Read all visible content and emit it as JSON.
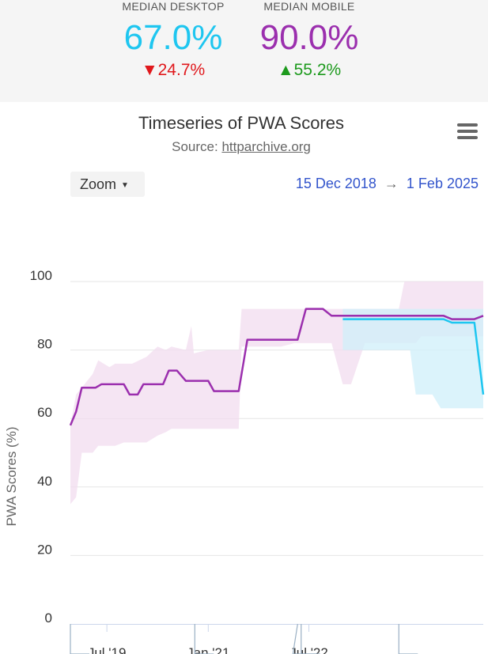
{
  "summary": {
    "desktop": {
      "label": "MEDIAN DESKTOP",
      "value": "67.0%",
      "arrow": "▼",
      "change": "24.7%",
      "color": "#1ec6f0"
    },
    "mobile": {
      "label": "MEDIAN MOBILE",
      "value": "90.0%",
      "arrow": "▲",
      "change": "55.2%",
      "color": "#9b2fae"
    }
  },
  "navigator": {
    "zoom_label": "Zoom",
    "range_start": "15 Dec 2018",
    "range_arrow": "→",
    "range_end": "1 Feb 2025"
  },
  "chart_data": {
    "type": "line",
    "title": "Timeseries of PWA Scores",
    "source_label": "Source:",
    "source_link": "httparchive.org",
    "ylabel": "PWA Scores (%)",
    "ylim": [
      0,
      100
    ],
    "yticks": [
      "0",
      "20",
      "40",
      "60",
      "80",
      "100"
    ],
    "xticks": [
      {
        "label": "Jul '19",
        "date": "2019-07-01"
      },
      {
        "label": "Jan '21",
        "date": "2021-01-01"
      },
      {
        "label": "Jul '22",
        "date": "2022-07-01"
      }
    ],
    "xlim": [
      "2018-12-15",
      "2025-02-01"
    ],
    "grid": true,
    "series": [
      {
        "name": "Mobile",
        "color": "#9b2fae",
        "band_color": "#f1dcef",
        "points": [
          [
            "2018-12-15",
            58
          ],
          [
            "2019-01-15",
            62
          ],
          [
            "2019-02-15",
            69
          ],
          [
            "2019-03-15",
            69
          ],
          [
            "2019-05-01",
            69
          ],
          [
            "2019-06-01",
            70
          ],
          [
            "2019-08-01",
            70
          ],
          [
            "2019-10-01",
            70
          ],
          [
            "2019-11-01",
            67
          ],
          [
            "2019-12-15",
            67
          ],
          [
            "2020-01-15",
            70
          ],
          [
            "2020-03-01",
            70
          ],
          [
            "2020-05-01",
            70
          ],
          [
            "2020-06-01",
            74
          ],
          [
            "2020-07-15",
            74
          ],
          [
            "2020-09-01",
            71
          ],
          [
            "2020-11-01",
            71
          ],
          [
            "2021-01-01",
            71
          ],
          [
            "2021-02-01",
            68
          ],
          [
            "2021-05-01",
            68
          ],
          [
            "2021-06-15",
            68
          ],
          [
            "2021-08-01",
            83
          ],
          [
            "2022-01-01",
            83
          ],
          [
            "2022-05-01",
            83
          ],
          [
            "2022-06-15",
            92
          ],
          [
            "2022-09-15",
            92
          ],
          [
            "2022-11-01",
            90
          ],
          [
            "2023-06-01",
            90
          ],
          [
            "2024-01-01",
            90
          ],
          [
            "2024-07-01",
            90
          ],
          [
            "2024-08-15",
            89
          ],
          [
            "2024-12-15",
            89
          ],
          [
            "2025-02-01",
            90
          ]
        ],
        "band": [
          [
            "2018-12-15",
            35,
            58
          ],
          [
            "2019-01-15",
            37,
            67
          ],
          [
            "2019-02-15",
            50,
            69
          ],
          [
            "2019-04-15",
            50,
            73
          ],
          [
            "2019-05-15",
            52,
            77
          ],
          [
            "2019-07-15",
            52,
            75
          ],
          [
            "2019-08-15",
            52,
            76
          ],
          [
            "2019-10-01",
            53,
            76
          ],
          [
            "2019-11-15",
            53,
            76
          ],
          [
            "2020-02-01",
            53,
            78
          ],
          [
            "2020-04-01",
            55,
            81
          ],
          [
            "2020-05-15",
            56,
            80
          ],
          [
            "2020-06-15",
            57,
            81
          ],
          [
            "2020-09-01",
            57,
            80
          ],
          [
            "2020-10-01",
            57,
            87
          ],
          [
            "2020-10-15",
            57,
            79
          ],
          [
            "2021-01-01",
            57,
            80
          ],
          [
            "2021-05-01",
            57,
            80
          ],
          [
            "2021-06-15",
            57,
            80
          ],
          [
            "2021-07-01",
            81,
            92
          ],
          [
            "2022-02-01",
            81,
            92
          ],
          [
            "2022-04-15",
            82,
            92
          ],
          [
            "2022-06-15",
            82,
            92
          ],
          [
            "2022-09-15",
            82,
            92
          ],
          [
            "2022-11-01",
            82,
            92
          ],
          [
            "2023-01-01",
            70,
            92
          ],
          [
            "2023-02-15",
            70,
            92
          ],
          [
            "2023-05-01",
            82,
            92
          ],
          [
            "2023-11-01",
            82,
            92
          ],
          [
            "2023-12-01",
            82,
            100
          ],
          [
            "2024-02-01",
            82,
            100
          ],
          [
            "2024-03-01",
            84,
            100
          ],
          [
            "2024-07-01",
            84,
            100
          ],
          [
            "2024-10-01",
            84,
            100
          ],
          [
            "2025-02-01",
            84,
            100
          ]
        ]
      },
      {
        "name": "Desktop",
        "color": "#1ec6f0",
        "band_color": "#cfeff9",
        "points": [
          [
            "2023-01-01",
            89
          ],
          [
            "2023-06-01",
            89
          ],
          [
            "2024-01-01",
            89
          ],
          [
            "2024-07-01",
            89
          ],
          [
            "2024-08-15",
            88
          ],
          [
            "2024-12-15",
            88
          ],
          [
            "2025-02-01",
            67
          ]
        ],
        "band": [
          [
            "2023-01-01",
            80,
            92
          ],
          [
            "2023-06-01",
            80,
            92
          ],
          [
            "2024-01-01",
            80,
            92
          ],
          [
            "2024-02-01",
            67,
            92
          ],
          [
            "2024-05-01",
            67,
            92
          ],
          [
            "2024-06-15",
            63,
            92
          ],
          [
            "2024-10-01",
            63,
            92
          ],
          [
            "2025-02-01",
            63,
            92
          ]
        ]
      }
    ]
  }
}
